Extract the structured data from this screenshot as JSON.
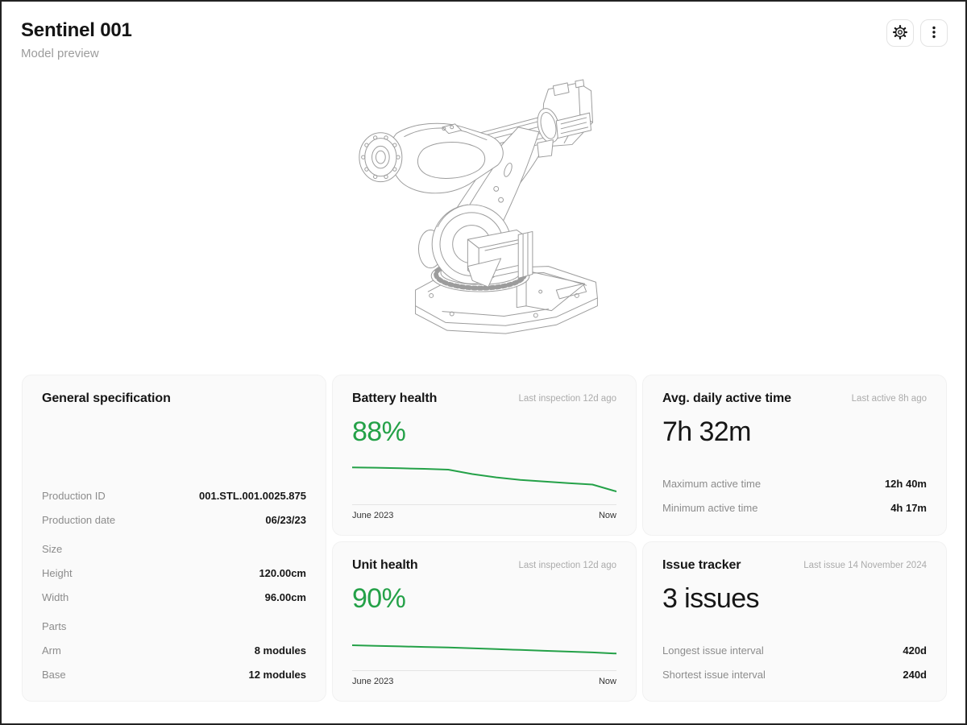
{
  "header": {
    "title": "Sentinel 001",
    "subtitle": "Model preview"
  },
  "toolbar": {
    "icons": [
      "gear-icon",
      "kebab-menu-icon"
    ]
  },
  "colors": {
    "green": "#24a148",
    "text": "#161616",
    "muted_label": "#8c8c8c",
    "caption": "#ababab",
    "card_bg": "#fafafa",
    "divider": "#e4e4e4",
    "line_art": "#9c9c9c"
  },
  "cards": {
    "general_spec": {
      "title": "General specification",
      "rows": [
        {
          "label": "Production ID",
          "value": "001.STL.001.0025.875",
          "section": false
        },
        {
          "label": "Production date",
          "value": "06/23/23",
          "section": false
        },
        {
          "label": "Size",
          "value": "",
          "section": true
        },
        {
          "label": "Height",
          "value": "120.00cm",
          "section": false
        },
        {
          "label": "Width",
          "value": "96.00cm",
          "section": false
        },
        {
          "label": "Parts",
          "value": "",
          "section": true
        },
        {
          "label": "Arm",
          "value": "8 modules",
          "section": false
        },
        {
          "label": "Base",
          "value": "12 modules",
          "section": false
        }
      ]
    },
    "battery_health": {
      "title": "Battery health",
      "caption": "Last inspection 12d ago",
      "value": "88%"
    },
    "unit_health": {
      "title": "Unit health",
      "caption": "Last inspection 12d ago",
      "value": "90%"
    },
    "active_time": {
      "title": "Avg. daily active time",
      "caption": "Last active 8h ago",
      "value": "7h 32m",
      "rows": [
        {
          "label": "Maximum active time",
          "value": "12h 40m"
        },
        {
          "label": "Minimum active time",
          "value": "4h 17m"
        }
      ]
    },
    "issue_tracker": {
      "title": "Issue tracker",
      "caption": "Last issue 14 November 2024",
      "value": "3 issues",
      "rows": [
        {
          "label": "Longest issue interval",
          "value": "420d"
        },
        {
          "label": "Shortest issue interval",
          "value": "240d"
        }
      ]
    }
  },
  "chart_data": [
    {
      "id": "battery-health-trend",
      "type": "line",
      "title": "Battery health",
      "unit": "%",
      "current": 88,
      "ylim": [
        86,
        100
      ],
      "grid": false,
      "legend": false,
      "x_range": [
        "June 2023",
        "Now"
      ],
      "values": [
        97,
        96.9,
        96.7,
        96.5,
        96.2,
        94.6,
        93.4,
        92.5,
        91.9,
        91.3,
        90.8,
        88.3
      ],
      "color": "#24a148"
    },
    {
      "id": "unit-health-trend",
      "type": "line",
      "title": "Unit health",
      "unit": "%",
      "current": 90,
      "ylim": [
        86,
        100
      ],
      "grid": false,
      "legend": false,
      "x_range": [
        "June 2023",
        "Now"
      ],
      "values": [
        93,
        92.8,
        92.6,
        92.4,
        92.2,
        91.9,
        91.6,
        91.3,
        91.0,
        90.7,
        90.4,
        90.0
      ],
      "color": "#24a148"
    }
  ]
}
